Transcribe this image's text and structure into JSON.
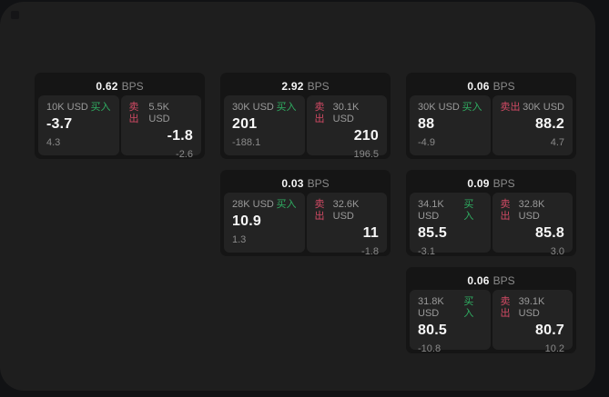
{
  "labels": {
    "bps_unit": "BPS",
    "buy": "买入",
    "sell": "卖出"
  },
  "colors": {
    "window_bg": "#1e1e1e",
    "card_bg": "#151515",
    "panel_bg": "#232323",
    "buy_green": "#2fae62",
    "sell_red": "#d14a64"
  },
  "cards": [
    {
      "bps": "0.62",
      "buy": {
        "amount": "10K USD",
        "price": "-3.7",
        "delta": "4.3"
      },
      "sell": {
        "amount": "5.5K USD",
        "price": "-1.8",
        "delta": "-2.6"
      }
    },
    {
      "bps": "2.92",
      "buy": {
        "amount": "30K USD",
        "price": "201",
        "delta": "-188.1"
      },
      "sell": {
        "amount": "30.1K USD",
        "price": "210",
        "delta": "196.5"
      }
    },
    {
      "bps": "0.06",
      "buy": {
        "amount": "30K USD",
        "price": "88",
        "delta": "-4.9"
      },
      "sell": {
        "amount": "30K USD",
        "price": "88.2",
        "delta": "4.7"
      }
    },
    {
      "bps": "0.03",
      "buy": {
        "amount": "28K USD",
        "price": "10.9",
        "delta": "1.3"
      },
      "sell": {
        "amount": "32.6K USD",
        "price": "11",
        "delta": "-1.8"
      }
    },
    {
      "bps": "0.09",
      "buy": {
        "amount": "34.1K USD",
        "price": "85.5",
        "delta": "-3.1"
      },
      "sell": {
        "amount": "32.8K USD",
        "price": "85.8",
        "delta": "3.0"
      }
    },
    {
      "bps": "0.06",
      "buy": {
        "amount": "31.8K USD",
        "price": "80.5",
        "delta": "-10.8"
      },
      "sell": {
        "amount": "39.1K USD",
        "price": "80.7",
        "delta": "10.2"
      }
    }
  ]
}
